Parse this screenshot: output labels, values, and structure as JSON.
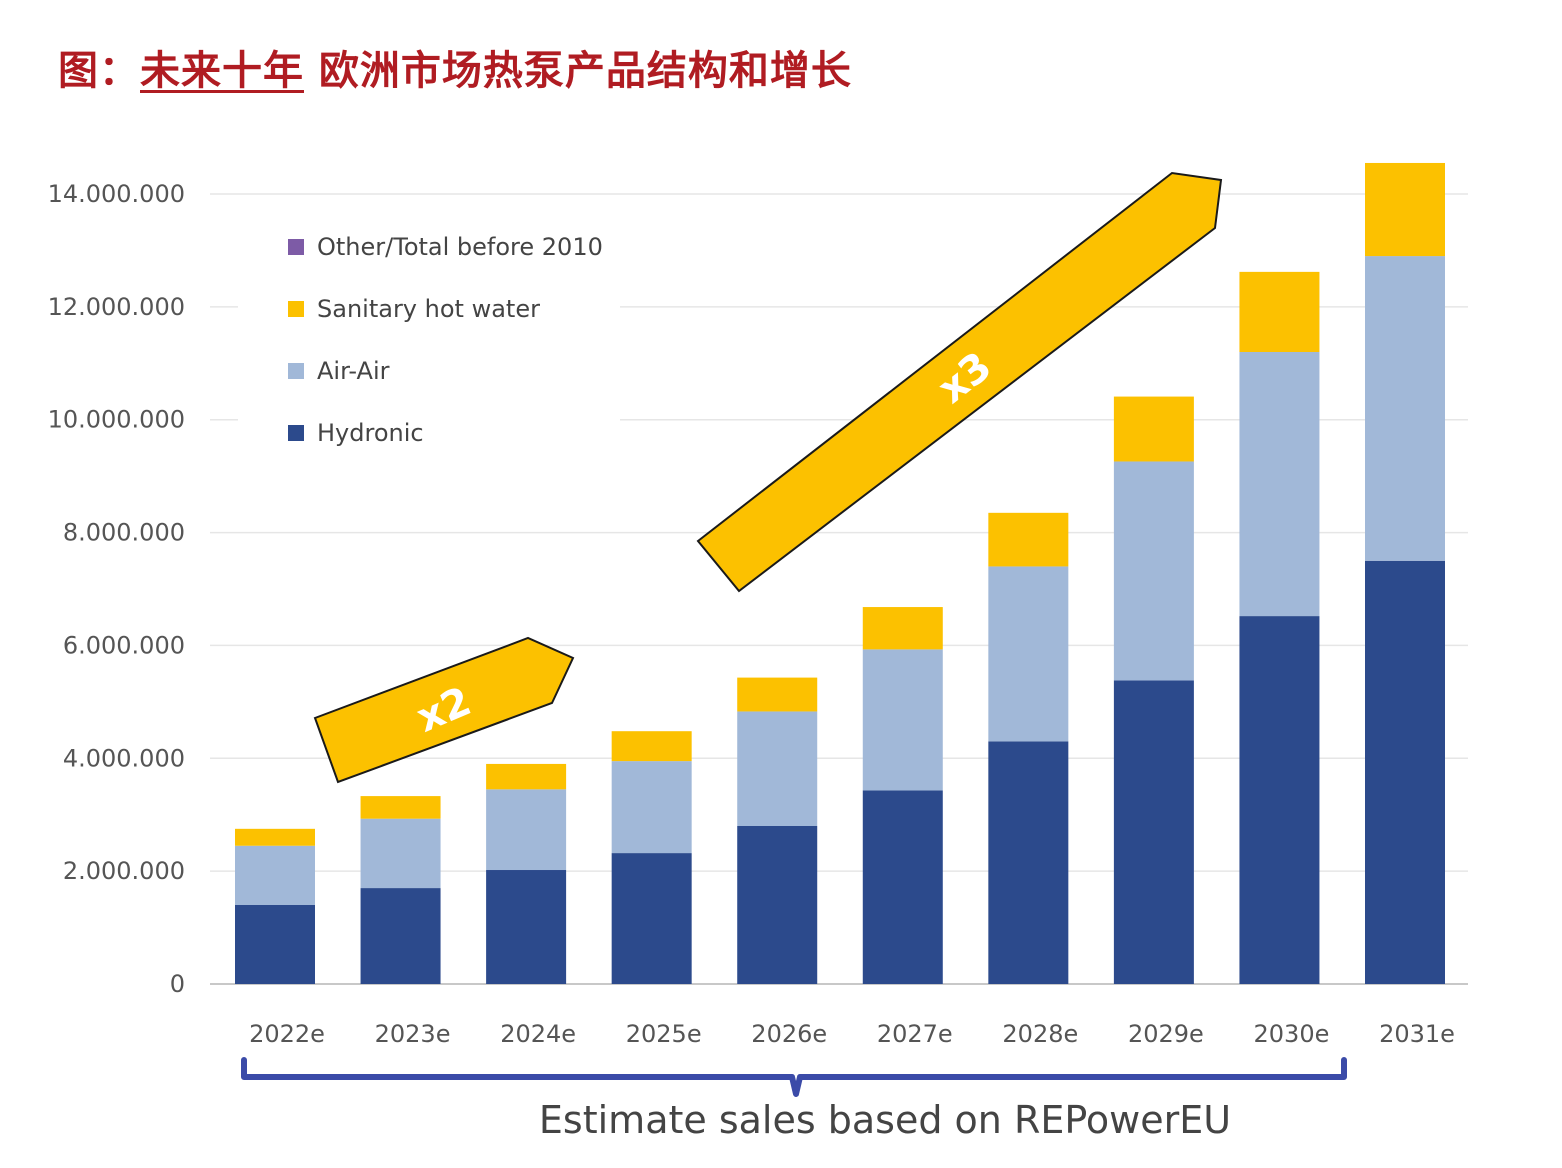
{
  "title": {
    "prefix": "图：",
    "underlined": "未来十年",
    "rest": " 欧洲市场热泵产品结构和增长"
  },
  "chart_data": {
    "type": "bar",
    "stacked": true,
    "categories": [
      "2022e",
      "2023e",
      "2024e",
      "2025e",
      "2026e",
      "2027e",
      "2028e",
      "2029e",
      "2030e",
      "2031e"
    ],
    "series": [
      {
        "name": "Hydronic",
        "color": "#2c4a8c",
        "values": [
          1400000,
          1700000,
          2020000,
          2320000,
          2800000,
          3430000,
          4300000,
          5380000,
          6520000,
          7500000
        ]
      },
      {
        "name": "Air-Air",
        "color": "#a1b8d8",
        "values": [
          1050000,
          1230000,
          1430000,
          1630000,
          2030000,
          2500000,
          3100000,
          3880000,
          4680000,
          5400000
        ]
      },
      {
        "name": "Sanitary hot water",
        "color": "#fcc100",
        "values": [
          300000,
          400000,
          450000,
          530000,
          600000,
          750000,
          950000,
          1150000,
          1420000,
          1650000
        ]
      },
      {
        "name": "Other/Total before 2010",
        "color": "#7d5ba6",
        "values": [
          0,
          0,
          0,
          0,
          0,
          0,
          0,
          0,
          0,
          0
        ]
      }
    ],
    "ylim": [
      0,
      14000000
    ],
    "yticks": [
      0,
      2000000,
      4000000,
      6000000,
      8000000,
      10000000,
      12000000,
      14000000
    ],
    "ytick_labels": [
      "0",
      "2.000.000",
      "4.000.000",
      "6.000.000",
      "8.000.000",
      "10.000.000",
      "12.000.000",
      "14.000.000"
    ],
    "grid": true,
    "legend_position": "top-left",
    "legend_order": [
      "Other/Total before 2010",
      "Sanitary hot water",
      "Air-Air",
      "Hydronic"
    ],
    "annotations": [
      {
        "text": "x2",
        "color": "#fcc100"
      },
      {
        "text": "x3",
        "color": "#fcc100"
      }
    ],
    "footnote": "Estimate sales based on REPowerEU",
    "bracket_color": "#3b4ba8"
  }
}
